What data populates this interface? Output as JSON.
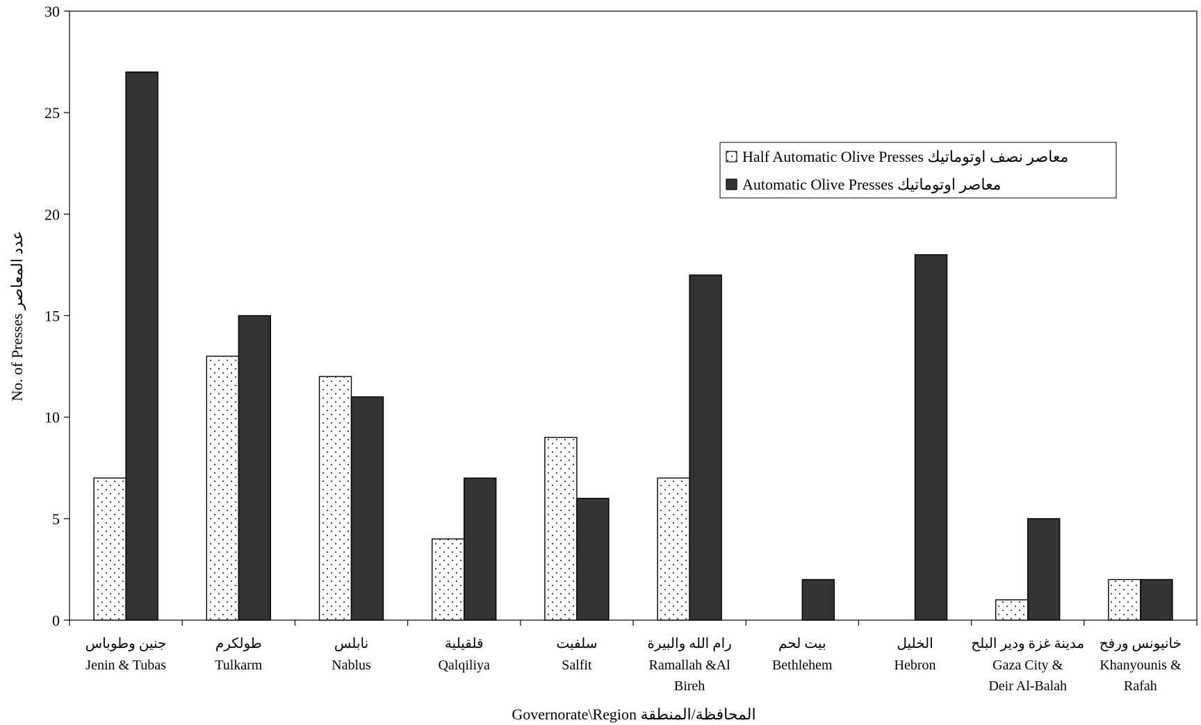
{
  "chart_data": {
    "type": "bar",
    "categories": [
      {
        "ar": "جنين وطوباس",
        "en": [
          "Jenin & Tubas"
        ]
      },
      {
        "ar": "طولكرم",
        "en": [
          "Tulkarm"
        ]
      },
      {
        "ar": "نابلس",
        "en": [
          "Nablus"
        ]
      },
      {
        "ar": "قلقيلية",
        "en": [
          "Qalqiliya"
        ]
      },
      {
        "ar": "سلفيت",
        "en": [
          "Salfit"
        ]
      },
      {
        "ar": "رام الله والبيرة",
        "en": [
          "Ramallah &Al",
          "Bireh"
        ]
      },
      {
        "ar": "بيت لحم",
        "en": [
          "Bethlehem"
        ]
      },
      {
        "ar": "الخليل",
        "en": [
          "Hebron"
        ]
      },
      {
        "ar": "مدينة غزة ودير البلح",
        "en": [
          "Gaza City &",
          "Deir Al-Balah"
        ]
      },
      {
        "ar": "خانيونس ورفح",
        "en": [
          "Khanyounis &",
          "Rafah"
        ]
      }
    ],
    "series": [
      {
        "name": "Half Automatic Olive Presses معاصر نصف اوتوماتيك",
        "values": [
          7,
          13,
          12,
          4,
          9,
          7,
          0,
          0,
          1,
          2
        ],
        "pattern": "dots",
        "color": "#ffffff"
      },
      {
        "name": "Automatic Olive Presses معاصر اوتوماتيك",
        "values": [
          27,
          15,
          11,
          7,
          6,
          17,
          2,
          18,
          5,
          2
        ],
        "pattern": "solid",
        "color": "#333333"
      }
    ],
    "xlabel": "Governorate\\Region  المحافظة/المنطقة",
    "ylabel": "No. of Presses  عدد المعاصر",
    "ylim": [
      0,
      30
    ],
    "yticks": [
      0,
      5,
      10,
      15,
      20,
      25,
      30
    ],
    "legend_position": "top-right",
    "grid": false
  }
}
